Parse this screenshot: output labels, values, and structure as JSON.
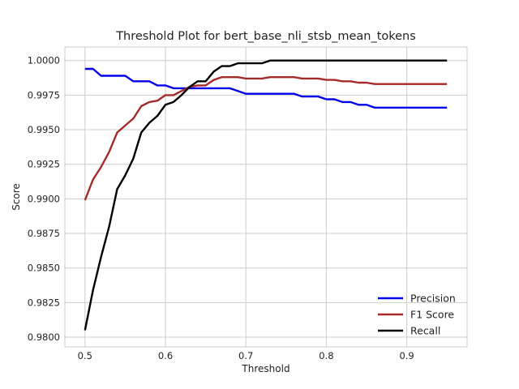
{
  "chart_data": {
    "type": "line",
    "title": "Threshold Plot for bert_base_nli_stsb_mean_tokens",
    "xlabel": "Threshold",
    "ylabel": "Score",
    "xlim": [
      0.475,
      0.975
    ],
    "ylim": [
      0.9793,
      1.00098
    ],
    "xticks": [
      0.5,
      0.6,
      0.7,
      0.8,
      0.9
    ],
    "xtick_labels": [
      "0.5",
      "0.6",
      "0.7",
      "0.8",
      "0.9"
    ],
    "yticks": [
      0.98,
      0.9825,
      0.985,
      0.9875,
      0.99,
      0.9925,
      0.995,
      0.9975,
      1.0
    ],
    "ytick_labels": [
      "0.9800",
      "0.9825",
      "0.9850",
      "0.9875",
      "0.9900",
      "0.9925",
      "0.9950",
      "0.9975",
      "1.0000"
    ],
    "grid": true,
    "legend_position": "lower-right",
    "x": [
      0.5,
      0.51,
      0.52,
      0.53,
      0.54,
      0.55,
      0.56,
      0.57,
      0.58,
      0.59,
      0.6,
      0.61,
      0.62,
      0.63,
      0.64,
      0.65,
      0.66,
      0.67,
      0.68,
      0.69,
      0.7,
      0.71,
      0.72,
      0.73,
      0.74,
      0.75,
      0.76,
      0.77,
      0.78,
      0.79,
      0.8,
      0.81,
      0.82,
      0.83,
      0.84,
      0.85,
      0.86,
      0.87,
      0.88,
      0.89,
      0.9,
      0.91,
      0.92,
      0.93,
      0.94,
      0.95
    ],
    "series": [
      {
        "name": "Precision",
        "color": "#0000ee",
        "values": [
          0.9994,
          0.9994,
          0.9989,
          0.9989,
          0.9989,
          0.9989,
          0.9985,
          0.9985,
          0.9985,
          0.9982,
          0.9982,
          0.998,
          0.998,
          0.998,
          0.998,
          0.998,
          0.998,
          0.998,
          0.998,
          0.9978,
          0.9976,
          0.9976,
          0.9976,
          0.9976,
          0.9976,
          0.9976,
          0.9976,
          0.9974,
          0.9974,
          0.9974,
          0.9972,
          0.9972,
          0.997,
          0.997,
          0.9968,
          0.9968,
          0.9966,
          0.9966,
          0.9966,
          0.9966,
          0.9966,
          0.9966,
          0.9966,
          0.9966,
          0.9966,
          0.9966
        ]
      },
      {
        "name": "F1 Score",
        "color": "#a52a2a",
        "values": [
          0.9899,
          0.9914,
          0.9923,
          0.9934,
          0.9948,
          0.9953,
          0.9958,
          0.9967,
          0.997,
          0.9971,
          0.9975,
          0.9975,
          0.9978,
          0.9981,
          0.9982,
          0.9982,
          0.9986,
          0.9988,
          0.9988,
          0.9988,
          0.9987,
          0.9987,
          0.9987,
          0.9988,
          0.9988,
          0.9988,
          0.9988,
          0.9987,
          0.9987,
          0.9987,
          0.9986,
          0.9986,
          0.9985,
          0.9985,
          0.9984,
          0.9984,
          0.9983,
          0.9983,
          0.9983,
          0.9983,
          0.9983,
          0.9983,
          0.9983,
          0.9983,
          0.9983,
          0.9983
        ]
      },
      {
        "name": "Recall",
        "color": "#000000",
        "values": [
          0.9805,
          0.9834,
          0.9858,
          0.988,
          0.9907,
          0.9917,
          0.9929,
          0.9948,
          0.9955,
          0.996,
          0.9968,
          0.997,
          0.9975,
          0.9981,
          0.9985,
          0.9985,
          0.9992,
          0.9996,
          0.9996,
          0.9998,
          0.9998,
          0.9998,
          0.9998,
          1.0,
          1.0,
          1.0,
          1.0,
          1.0,
          1.0,
          1.0,
          1.0,
          1.0,
          1.0,
          1.0,
          1.0,
          1.0,
          1.0,
          1.0,
          1.0,
          1.0,
          1.0,
          1.0,
          1.0,
          1.0,
          1.0,
          1.0
        ]
      }
    ]
  }
}
